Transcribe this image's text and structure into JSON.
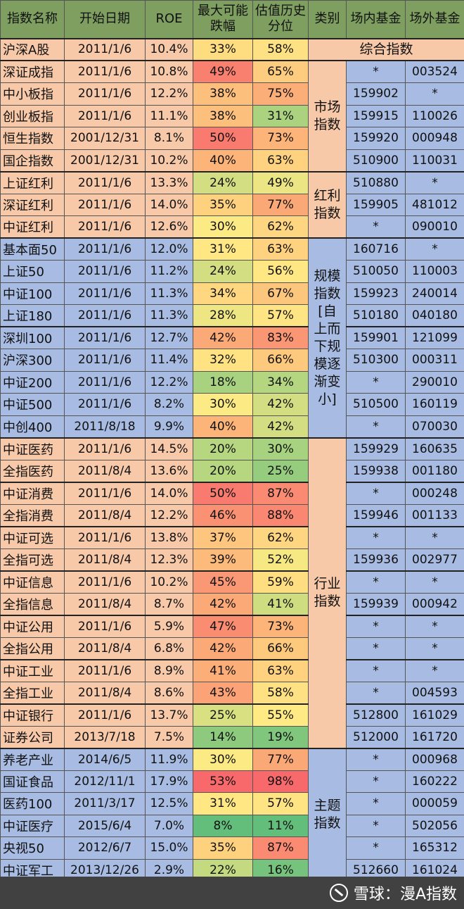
{
  "header": {
    "name": "指数名称",
    "start": "开始日期",
    "roe": "ROE",
    "drop": "最大可能跌幅",
    "pct": "估值历史分位",
    "cat": "类别",
    "onsite": "场内基金",
    "offsite": "场外基金"
  },
  "colors": {
    "header": "#7f9f61",
    "orange": "#f7c9a8",
    "blue": "#a8bce3",
    "scale_low": "#63be7b",
    "scale_mid": "#ffeb84",
    "scale_high": "#f8696b"
  },
  "groups": [
    {
      "label": "综合指数",
      "merged": true,
      "color": "orange",
      "rows": [
        {
          "name": "沪深A股",
          "start": "2011/1/6",
          "roe": "10.4%",
          "drop": "33%",
          "pct": "58%",
          "onsite": "",
          "offsite": ""
        }
      ]
    },
    {
      "label": "市场指数",
      "color": "orange",
      "rows": [
        {
          "name": "深证成指",
          "start": "2011/1/6",
          "roe": "10.8%",
          "drop": "49%",
          "pct": "65%",
          "onsite": "*",
          "offsite": "003524"
        },
        {
          "name": "中小板指",
          "start": "2011/1/6",
          "roe": "12.2%",
          "drop": "38%",
          "pct": "75%",
          "onsite": "159902",
          "offsite": "*"
        },
        {
          "name": "创业板指",
          "start": "2011/1/6",
          "roe": "11.1%",
          "drop": "38%",
          "pct": "31%",
          "onsite": "159915",
          "offsite": "110026"
        },
        {
          "name": "恒生指数",
          "start": "2001/12/31",
          "roe": "8.1%",
          "drop": "50%",
          "pct": "73%",
          "onsite": "159920",
          "offsite": "000948"
        },
        {
          "name": "国企指数",
          "start": "2001/12/31",
          "roe": "10.2%",
          "drop": "40%",
          "pct": "63%",
          "onsite": "510900",
          "offsite": "110031"
        }
      ]
    },
    {
      "label": "红利指数",
      "color": "orange",
      "rows": [
        {
          "name": "上证红利",
          "start": "2011/1/6",
          "roe": "13.3%",
          "drop": "24%",
          "pct": "49%",
          "onsite": "510880",
          "offsite": "*"
        },
        {
          "name": "深证红利",
          "start": "2011/1/6",
          "roe": "14.0%",
          "drop": "35%",
          "pct": "77%",
          "onsite": "159905",
          "offsite": "481012"
        },
        {
          "name": "中证红利",
          "start": "2011/1/6",
          "roe": "12.6%",
          "drop": "30%",
          "pct": "62%",
          "onsite": "*",
          "offsite": "090010"
        }
      ]
    },
    {
      "label": "规模指数[自上而下规模逐渐变小]",
      "color": "blue",
      "rows": [
        {
          "name": "基本面50",
          "start": "2011/1/6",
          "roe": "12.0%",
          "drop": "31%",
          "pct": "63%",
          "onsite": "160716",
          "offsite": "*"
        },
        {
          "name": "上证50",
          "start": "2011/1/6",
          "roe": "11.2%",
          "drop": "24%",
          "pct": "56%",
          "onsite": "510050",
          "offsite": "110003"
        },
        {
          "name": "中证100",
          "start": "2011/1/6",
          "roe": "11.3%",
          "drop": "34%",
          "pct": "67%",
          "onsite": "159923",
          "offsite": "240014"
        },
        {
          "name": "上证180",
          "start": "2011/1/6",
          "roe": "11.3%",
          "drop": "28%",
          "pct": "57%",
          "onsite": "510180",
          "offsite": "040180"
        },
        {
          "name": "深圳100",
          "start": "2011/1/6",
          "roe": "12.7%",
          "drop": "42%",
          "pct": "83%",
          "onsite": "159901",
          "offsite": "121099",
          "sep": true
        },
        {
          "name": "沪深300",
          "start": "2011/1/6",
          "roe": "11.4%",
          "drop": "32%",
          "pct": "66%",
          "onsite": "510300",
          "offsite": "000311"
        },
        {
          "name": "中证200",
          "start": "2011/1/6",
          "roe": "12.2%",
          "drop": "18%",
          "pct": "34%",
          "onsite": "*",
          "offsite": "290010"
        },
        {
          "name": "中证500",
          "start": "2011/1/6",
          "roe": "8.2%",
          "drop": "30%",
          "pct": "42%",
          "onsite": "510500",
          "offsite": "160119"
        },
        {
          "name": "中创400",
          "start": "2011/8/18",
          "roe": "9.9%",
          "drop": "40%",
          "pct": "42%",
          "onsite": "*",
          "offsite": "070030"
        }
      ]
    },
    {
      "label": "行业指数",
      "color": "orange",
      "rows": [
        {
          "name": "中证医药",
          "start": "2011/1/6",
          "roe": "14.5%",
          "drop": "20%",
          "pct": "30%",
          "onsite": "159929",
          "offsite": "160635"
        },
        {
          "name": "全指医药",
          "start": "2011/8/4",
          "roe": "13.6%",
          "drop": "20%",
          "pct": "25%",
          "onsite": "159938",
          "offsite": "001180"
        },
        {
          "name": "中证消费",
          "start": "2011/1/6",
          "roe": "14.0%",
          "drop": "50%",
          "pct": "87%",
          "onsite": "*",
          "offsite": "000248",
          "sep": true
        },
        {
          "name": "全指消费",
          "start": "2011/8/4",
          "roe": "12.2%",
          "drop": "46%",
          "pct": "88%",
          "onsite": "159946",
          "offsite": "001133"
        },
        {
          "name": "中证可选",
          "start": "2011/1/6",
          "roe": "13.8%",
          "drop": "37%",
          "pct": "62%",
          "onsite": "*",
          "offsite": "*",
          "sep": true
        },
        {
          "name": "全指可选",
          "start": "2011/8/4",
          "roe": "12.3%",
          "drop": "39%",
          "pct": "52%",
          "onsite": "159936",
          "offsite": "002977"
        },
        {
          "name": "中证信息",
          "start": "2011/1/6",
          "roe": "10.2%",
          "drop": "45%",
          "pct": "59%",
          "onsite": "*",
          "offsite": "*",
          "sep": true
        },
        {
          "name": "全指信息",
          "start": "2011/8/4",
          "roe": "8.7%",
          "drop": "42%",
          "pct": "41%",
          "onsite": "159939",
          "offsite": "000942"
        },
        {
          "name": "中证公用",
          "start": "2011/1/6",
          "roe": "5.9%",
          "drop": "47%",
          "pct": "73%",
          "onsite": "*",
          "offsite": "*",
          "sep": true
        },
        {
          "name": "全指公用",
          "start": "2011/8/4",
          "roe": "6.8%",
          "drop": "42%",
          "pct": "66%",
          "onsite": "*",
          "offsite": "*"
        },
        {
          "name": "中证工业",
          "start": "2011/1/6",
          "roe": "8.9%",
          "drop": "41%",
          "pct": "63%",
          "onsite": "*",
          "offsite": "*",
          "sep": true
        },
        {
          "name": "全指工业",
          "start": "2011/8/4",
          "roe": "8.6%",
          "drop": "43%",
          "pct": "58%",
          "onsite": "*",
          "offsite": "004593"
        },
        {
          "name": "中证银行",
          "start": "2011/1/6",
          "roe": "13.7%",
          "drop": "25%",
          "pct": "55%",
          "onsite": "512800",
          "offsite": "161029",
          "sep": true
        },
        {
          "name": "证券公司",
          "start": "2013/7/18",
          "roe": "7.5%",
          "drop": "14%",
          "pct": "19%",
          "onsite": "512000",
          "offsite": "161720"
        }
      ]
    },
    {
      "label": "主题指数",
      "color": "blue",
      "rows": [
        {
          "name": "养老产业",
          "start": "2014/6/5",
          "roe": "11.9%",
          "drop": "30%",
          "pct": "77%",
          "onsite": "*",
          "offsite": "000968"
        },
        {
          "name": "国证食品",
          "start": "2012/11/1",
          "roe": "17.9%",
          "drop": "53%",
          "pct": "98%",
          "onsite": "*",
          "offsite": "160222"
        },
        {
          "name": "医药100",
          "start": "2011/3/17",
          "roe": "12.5%",
          "drop": "31%",
          "pct": "57%",
          "onsite": "*",
          "offsite": "000059"
        },
        {
          "name": "中证医疗",
          "start": "2015/6/4",
          "roe": "7.0%",
          "drop": "8%",
          "pct": "11%",
          "onsite": "*",
          "offsite": "502056"
        },
        {
          "name": "央视50",
          "start": "2012/6/7",
          "roe": "15.0%",
          "drop": "35%",
          "pct": "87%",
          "onsite": "*",
          "offsite": "165312"
        },
        {
          "name": "中证军工",
          "start": "2013/12/26",
          "roe": "2.9%",
          "drop": "22%",
          "pct": "16%",
          "onsite": "512660",
          "offsite": "161024"
        }
      ]
    }
  ],
  "footer": {
    "brand": "雪球",
    "separator": "：",
    "author": "漫A指数",
    "logo_icon": "snowball-logo-icon"
  }
}
